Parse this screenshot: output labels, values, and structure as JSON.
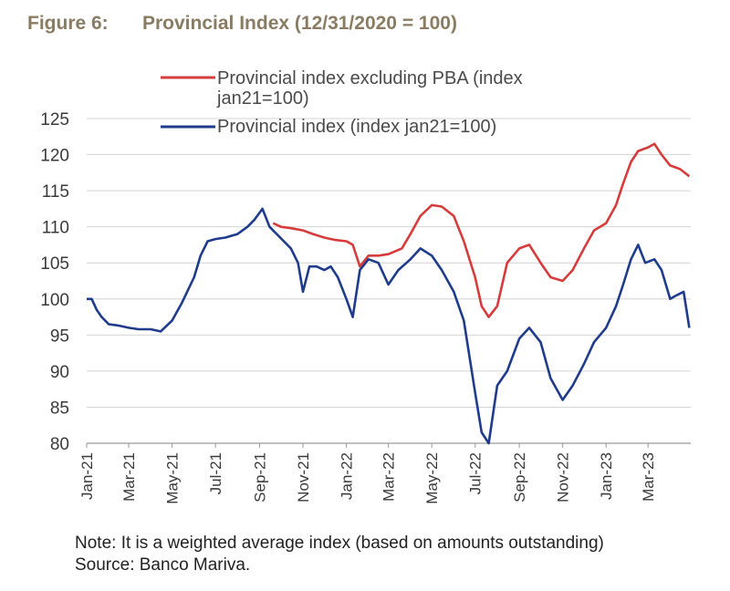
{
  "figure": {
    "number": "Figure 6:",
    "title": "Provincial Index (12/31/2020 = 100)"
  },
  "note": "Note: It is a weighted average index (based on amounts outstanding) Source: Banco Mariva.",
  "colors": {
    "red": "#d63c3c",
    "blue": "#1f3c8c",
    "grid": "#d4d4d4",
    "title": "#8a7b63"
  },
  "chart_data": {
    "type": "line",
    "ylim": [
      80,
      125
    ],
    "yticks": [
      80,
      85,
      90,
      95,
      100,
      105,
      110,
      115,
      120,
      125
    ],
    "xlim": [
      "2021-01-01",
      "2023-04-30"
    ],
    "xticks": [
      {
        "label": "Jan-21",
        "date": "2021-01-01"
      },
      {
        "label": "Mar-21",
        "date": "2021-03-01"
      },
      {
        "label": "May-21",
        "date": "2021-05-01"
      },
      {
        "label": "Jul-21",
        "date": "2021-07-01"
      },
      {
        "label": "Sep-21",
        "date": "2021-09-01"
      },
      {
        "label": "Nov-21",
        "date": "2021-11-01"
      },
      {
        "label": "Jan-22",
        "date": "2022-01-01"
      },
      {
        "label": "Mar-22",
        "date": "2022-03-01"
      },
      {
        "label": "May-22",
        "date": "2022-05-01"
      },
      {
        "label": "Jul-22",
        "date": "2022-07-01"
      },
      {
        "label": "Sep-22",
        "date": "2022-09-01"
      },
      {
        "label": "Nov-22",
        "date": "2022-11-01"
      },
      {
        "label": "Jan-23",
        "date": "2023-01-01"
      },
      {
        "label": "Mar-23",
        "date": "2023-03-01"
      }
    ],
    "legend_position": "top",
    "series": [
      {
        "name": "Provincial index excluding PBA (index jan21=100)",
        "color": "#d63c3c",
        "points": [
          [
            "2021-09-20",
            110.5
          ],
          [
            "2021-10-01",
            110.0
          ],
          [
            "2021-10-15",
            109.8
          ],
          [
            "2021-11-01",
            109.5
          ],
          [
            "2021-11-15",
            109.0
          ],
          [
            "2021-12-01",
            108.5
          ],
          [
            "2021-12-15",
            108.2
          ],
          [
            "2022-01-01",
            108.0
          ],
          [
            "2022-01-10",
            107.5
          ],
          [
            "2022-01-20",
            104.5
          ],
          [
            "2022-02-01",
            106.0
          ],
          [
            "2022-02-15",
            106.0
          ],
          [
            "2022-03-01",
            106.2
          ],
          [
            "2022-03-20",
            107.0
          ],
          [
            "2022-04-01",
            109.0
          ],
          [
            "2022-04-15",
            111.5
          ],
          [
            "2022-05-01",
            113.0
          ],
          [
            "2022-05-15",
            112.8
          ],
          [
            "2022-06-01",
            111.5
          ],
          [
            "2022-06-15",
            108.0
          ],
          [
            "2022-07-01",
            103.0
          ],
          [
            "2022-07-10",
            99.0
          ],
          [
            "2022-07-20",
            97.5
          ],
          [
            "2022-08-01",
            99.0
          ],
          [
            "2022-08-15",
            105.0
          ],
          [
            "2022-09-01",
            107.0
          ],
          [
            "2022-09-15",
            107.5
          ],
          [
            "2022-10-01",
            105.0
          ],
          [
            "2022-10-15",
            103.0
          ],
          [
            "2022-11-01",
            102.5
          ],
          [
            "2022-11-15",
            104.0
          ],
          [
            "2022-12-01",
            107.0
          ],
          [
            "2022-12-15",
            109.5
          ],
          [
            "2023-01-01",
            110.5
          ],
          [
            "2023-01-15",
            113.0
          ],
          [
            "2023-01-25",
            116.0
          ],
          [
            "2023-02-05",
            119.0
          ],
          [
            "2023-02-15",
            120.5
          ],
          [
            "2023-03-01",
            121.0
          ],
          [
            "2023-03-10",
            121.5
          ],
          [
            "2023-03-20",
            120.0
          ],
          [
            "2023-04-01",
            118.5
          ],
          [
            "2023-04-15",
            118.0
          ],
          [
            "2023-04-28",
            117.0
          ]
        ]
      },
      {
        "name": "Provincial index (index jan21=100)",
        "color": "#1f3c8c",
        "points": [
          [
            "2021-01-01",
            100.0
          ],
          [
            "2021-01-08",
            100.0
          ],
          [
            "2021-01-15",
            98.5
          ],
          [
            "2021-01-22",
            97.5
          ],
          [
            "2021-02-01",
            96.5
          ],
          [
            "2021-02-15",
            96.3
          ],
          [
            "2021-03-01",
            96.0
          ],
          [
            "2021-03-15",
            95.8
          ],
          [
            "2021-04-01",
            95.8
          ],
          [
            "2021-04-15",
            95.5
          ],
          [
            "2021-05-01",
            97.0
          ],
          [
            "2021-05-15",
            99.5
          ],
          [
            "2021-06-01",
            103.0
          ],
          [
            "2021-06-10",
            106.0
          ],
          [
            "2021-06-20",
            108.0
          ],
          [
            "2021-07-01",
            108.3
          ],
          [
            "2021-07-15",
            108.5
          ],
          [
            "2021-08-01",
            109.0
          ],
          [
            "2021-08-15",
            110.0
          ],
          [
            "2021-08-25",
            111.0
          ],
          [
            "2021-09-05",
            112.5
          ],
          [
            "2021-09-15",
            110.0
          ],
          [
            "2021-09-25",
            109.0
          ],
          [
            "2021-10-05",
            108.0
          ],
          [
            "2021-10-15",
            107.0
          ],
          [
            "2021-10-25",
            105.0
          ],
          [
            "2021-11-01",
            101.0
          ],
          [
            "2021-11-10",
            104.5
          ],
          [
            "2021-11-20",
            104.5
          ],
          [
            "2021-12-01",
            104.0
          ],
          [
            "2021-12-10",
            104.5
          ],
          [
            "2021-12-20",
            103.0
          ],
          [
            "2022-01-01",
            100.0
          ],
          [
            "2022-01-10",
            97.5
          ],
          [
            "2022-01-20",
            104.0
          ],
          [
            "2022-02-01",
            105.5
          ],
          [
            "2022-02-15",
            105.0
          ],
          [
            "2022-03-01",
            102.0
          ],
          [
            "2022-03-15",
            104.0
          ],
          [
            "2022-04-01",
            105.5
          ],
          [
            "2022-04-15",
            107.0
          ],
          [
            "2022-05-01",
            106.0
          ],
          [
            "2022-05-15",
            104.0
          ],
          [
            "2022-06-01",
            101.0
          ],
          [
            "2022-06-15",
            97.0
          ],
          [
            "2022-07-01",
            87.0
          ],
          [
            "2022-07-10",
            81.5
          ],
          [
            "2022-07-20",
            80.0
          ],
          [
            "2022-08-01",
            88.0
          ],
          [
            "2022-08-15",
            90.0
          ],
          [
            "2022-09-01",
            94.5
          ],
          [
            "2022-09-15",
            96.0
          ],
          [
            "2022-10-01",
            94.0
          ],
          [
            "2022-10-15",
            89.0
          ],
          [
            "2022-11-01",
            86.0
          ],
          [
            "2022-11-15",
            88.0
          ],
          [
            "2022-12-01",
            91.0
          ],
          [
            "2022-12-15",
            94.0
          ],
          [
            "2023-01-01",
            96.0
          ],
          [
            "2023-01-15",
            99.0
          ],
          [
            "2023-01-25",
            102.0
          ],
          [
            "2023-02-05",
            105.5
          ],
          [
            "2023-02-15",
            107.5
          ],
          [
            "2023-02-25",
            105.0
          ],
          [
            "2023-03-10",
            105.5
          ],
          [
            "2023-03-20",
            104.0
          ],
          [
            "2023-04-01",
            100.0
          ],
          [
            "2023-04-10",
            100.5
          ],
          [
            "2023-04-20",
            101.0
          ],
          [
            "2023-04-28",
            96.0
          ]
        ]
      }
    ]
  }
}
